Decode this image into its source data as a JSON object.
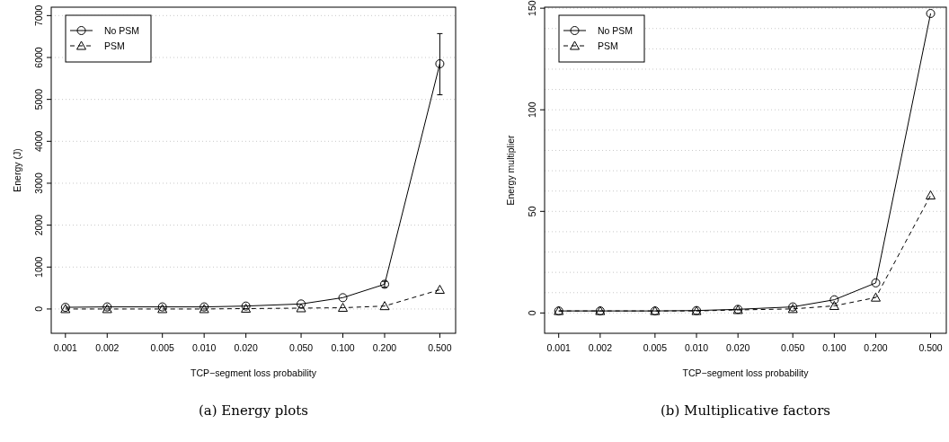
{
  "chart_data": [
    {
      "type": "line",
      "title": "(a) Energy plots",
      "xlabel": "TCP−segment loss probability",
      "ylabel": "Energy (J)",
      "log": "x",
      "xlim": [
        0.00079,
        0.65
      ],
      "xticks": [
        {
          "value": 0.001,
          "label": "0.001"
        },
        {
          "value": 0.002,
          "label": "0.002"
        },
        {
          "value": 0.005,
          "label": "0.005"
        },
        {
          "value": 0.01,
          "label": "0.010"
        },
        {
          "value": 0.02,
          "label": "0.020"
        },
        {
          "value": 0.05,
          "label": "0.050"
        },
        {
          "value": 0.1,
          "label": "0.100"
        },
        {
          "value": 0.2,
          "label": "0.200"
        },
        {
          "value": 0.5,
          "label": "0.500"
        }
      ],
      "ylim": [
        -580,
        7200
      ],
      "yticks": [
        0,
        1000,
        2000,
        3000,
        4000,
        5000,
        6000,
        7000
      ],
      "grid": "y",
      "legend": "top left",
      "x": [
        0.001,
        0.002,
        0.005,
        0.01,
        0.02,
        0.05,
        0.1,
        0.2,
        0.5
      ],
      "series": [
        {
          "name": "No PSM",
          "color": "#000000",
          "marker": "circle",
          "line_style": "solid",
          "values": [
            40,
            50,
            50,
            50,
            70,
            120,
            270,
            590,
            5850
          ],
          "errors": [
            null,
            null,
            null,
            null,
            null,
            null,
            null,
            [
              520,
              660
            ],
            [
              5110,
              6570
            ]
          ]
        },
        {
          "name": "PSM",
          "color": "#000000",
          "marker": "triangle",
          "line_style": "dashed",
          "values": [
            0,
            0,
            0,
            0,
            10,
            20,
            30,
            70,
            460
          ]
        }
      ]
    },
    {
      "type": "line",
      "title": "(b) Multiplicative factors",
      "xlabel": "TCP−segment loss probability",
      "ylabel": "Energy multiplier",
      "log": "x",
      "xlim": [
        0.00079,
        0.65
      ],
      "xticks": [
        {
          "value": 0.001,
          "label": "0.001"
        },
        {
          "value": 0.002,
          "label": "0.002"
        },
        {
          "value": 0.005,
          "label": "0.005"
        },
        {
          "value": 0.01,
          "label": "0.010"
        },
        {
          "value": 0.02,
          "label": "0.020"
        },
        {
          "value": 0.05,
          "label": "0.050"
        },
        {
          "value": 0.1,
          "label": "0.100"
        },
        {
          "value": 0.2,
          "label": "0.200"
        },
        {
          "value": 0.5,
          "label": "0.500"
        }
      ],
      "ylim": [
        -10,
        150.5
      ],
      "yticks": [
        0,
        {
          "value": 10,
          "label": null
        },
        {
          "value": 20,
          "label": null
        },
        {
          "value": 30,
          "label": null
        },
        {
          "value": 40,
          "label": null
        },
        50,
        {
          "value": 60,
          "label": null
        },
        {
          "value": 70,
          "label": null
        },
        {
          "value": 80,
          "label": null
        },
        {
          "value": 90,
          "label": null
        },
        100,
        {
          "value": 110,
          "label": null
        },
        {
          "value": 120,
          "label": null
        },
        {
          "value": 130,
          "label": null
        },
        {
          "value": 140,
          "label": null
        },
        150
      ],
      "grid": "y",
      "legend": "top left",
      "x": [
        0.001,
        0.002,
        0.005,
        0.01,
        0.02,
        0.05,
        0.1,
        0.2,
        0.5
      ],
      "series": [
        {
          "name": "No PSM",
          "color": "#000000",
          "marker": "circle",
          "line_style": "solid",
          "values": [
            1,
            1,
            1,
            1.2,
            1.8,
            3,
            6.5,
            14.8,
            147.4
          ]
        },
        {
          "name": "PSM",
          "color": "#000000",
          "marker": "triangle",
          "line_style": "dashed",
          "values": [
            1,
            1,
            1,
            1,
            1.5,
            2,
            3.5,
            7.6,
            57.9
          ]
        }
      ]
    }
  ]
}
